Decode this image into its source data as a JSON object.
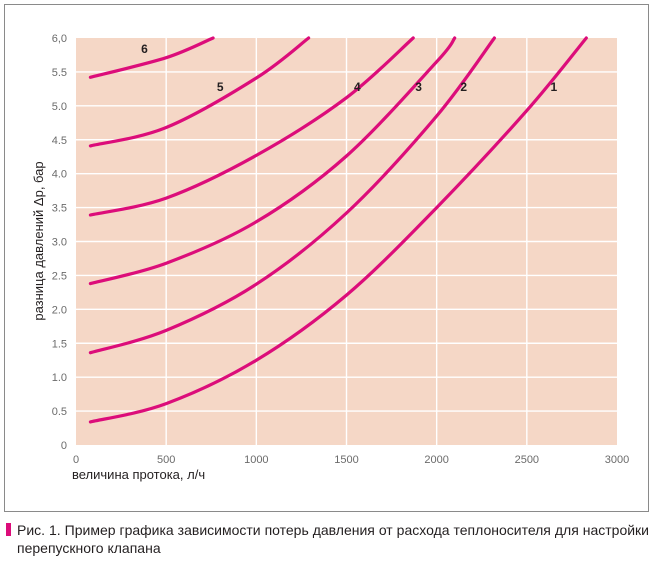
{
  "caption": "Рис. 1. Пример графика зависимости потерь давления от расхода теплоносителя для настройки перепускного клапана",
  "colors": {
    "plot_background": "#f5d7c6",
    "grid": "#ffffff",
    "curve": "#dc0d7a",
    "caption_marker": "#dc0d7a",
    "frame": "#8a8a8a"
  },
  "chart_data": {
    "type": "line",
    "xlabel": "величина протока, л/ч",
    "ylabel": "разница давлений Δp, бар",
    "xlim": [
      0,
      3000
    ],
    "ylim": [
      0,
      6.0
    ],
    "x_ticks": [
      0,
      500,
      1000,
      1500,
      2000,
      2500,
      3000
    ],
    "x_tick_labels": [
      "0",
      "500",
      "1000",
      "1500",
      "2000",
      "2500",
      "3000"
    ],
    "y_ticks": [
      0,
      0.5,
      1.0,
      1.5,
      2.0,
      2.5,
      3.0,
      3.5,
      4.0,
      4.5,
      5.0,
      5.5,
      6.0
    ],
    "y_tick_labels": [
      "0",
      "0.5",
      "1.0",
      "1.5",
      "2.0",
      "2.5",
      "3.0",
      "3.5",
      "4.0",
      "4.5",
      "5.0",
      "5.5",
      "6,0"
    ],
    "grid": true,
    "series": [
      {
        "name": "1",
        "x": [
          80,
          500,
          1000,
          1500,
          2000,
          2500,
          2830
        ],
        "y": [
          0.34,
          0.61,
          1.25,
          2.21,
          3.5,
          4.93,
          6.0
        ]
      },
      {
        "name": "2",
        "x": [
          80,
          500,
          1000,
          1500,
          2000,
          2320
        ],
        "y": [
          1.36,
          1.69,
          2.37,
          3.42,
          4.85,
          6.0
        ]
      },
      {
        "name": "3",
        "x": [
          80,
          500,
          1000,
          1500,
          2000,
          2100
        ],
        "y": [
          2.38,
          2.68,
          3.29,
          4.26,
          5.65,
          6.0
        ]
      },
      {
        "name": "4",
        "x": [
          80,
          500,
          1000,
          1500,
          1870
        ],
        "y": [
          3.39,
          3.64,
          4.27,
          5.12,
          6.0
        ]
      },
      {
        "name": "5",
        "x": [
          80,
          500,
          1000,
          1290
        ],
        "y": [
          4.41,
          4.68,
          5.41,
          6.0
        ]
      },
      {
        "name": "6",
        "x": [
          80,
          500,
          760
        ],
        "y": [
          5.42,
          5.71,
          6.0
        ]
      }
    ],
    "curve_labels": [
      {
        "text": "1",
        "x": 2650,
        "y": 5.22
      },
      {
        "text": "2",
        "x": 2150,
        "y": 5.22
      },
      {
        "text": "3",
        "x": 1900,
        "y": 5.22
      },
      {
        "text": "4",
        "x": 1560,
        "y": 5.22
      },
      {
        "text": "5",
        "x": 800,
        "y": 5.22
      },
      {
        "text": "6",
        "x": 380,
        "y": 5.78
      }
    ]
  }
}
